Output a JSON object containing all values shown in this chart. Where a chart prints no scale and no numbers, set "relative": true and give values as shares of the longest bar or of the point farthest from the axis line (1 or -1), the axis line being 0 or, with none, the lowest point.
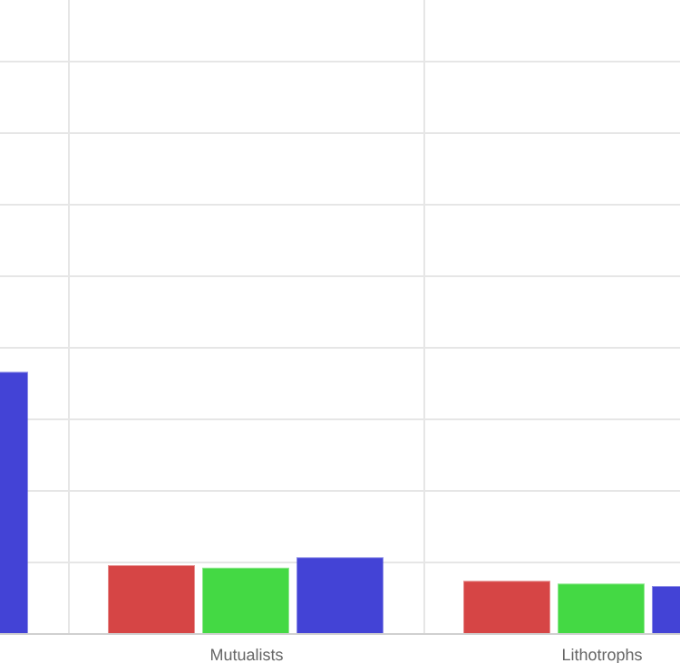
{
  "chart_data": {
    "type": "bar",
    "relative": true,
    "grid": true,
    "categories": [
      null,
      "Mutualists",
      "Lithotrophs"
    ],
    "series": [
      {
        "color": "#d64545",
        "values": [
          null,
          0.26,
          0.2
        ]
      },
      {
        "color": "#44d944",
        "values": [
          null,
          0.25,
          0.19
        ]
      },
      {
        "color": "#4343d6",
        "values": [
          1,
          0.29,
          0.18
        ]
      }
    ]
  }
}
